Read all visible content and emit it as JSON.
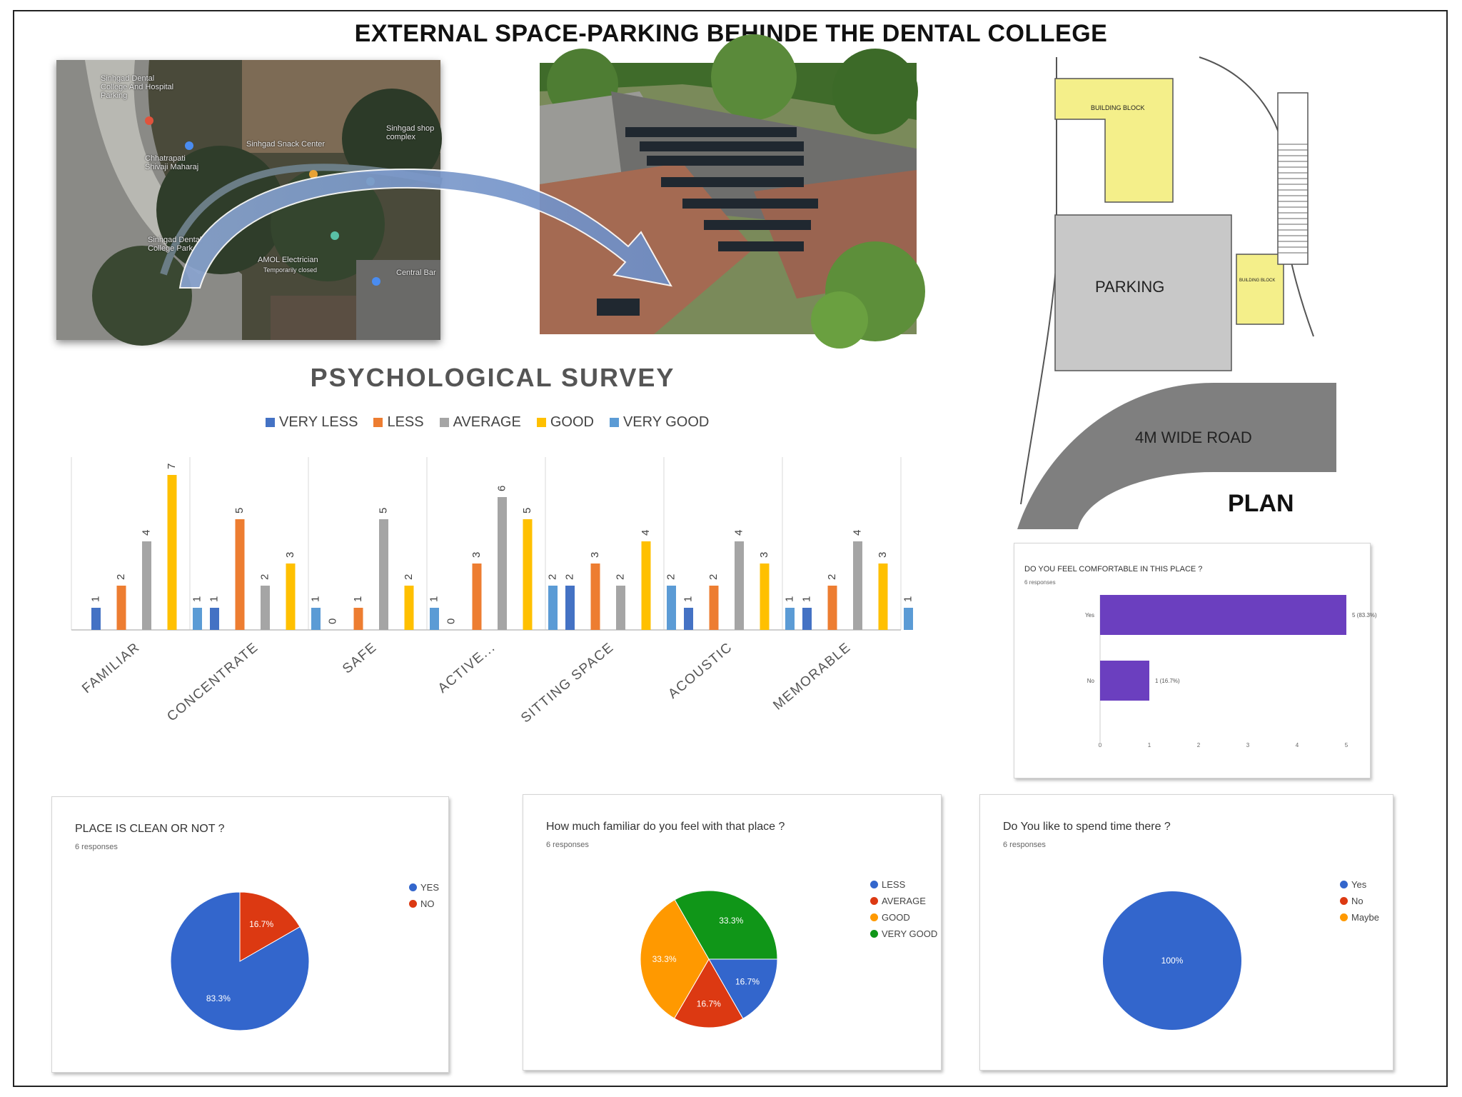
{
  "page": {
    "title": "EXTERNAL SPACE-PARKING BEHINDE THE DENTAL COLLEGE"
  },
  "map": {
    "labels": [
      "Sinhgad Dental College And Hospital Parking",
      "Sinhgad Snack Center",
      "Sinhgad shop complex",
      "Sinhgad Dental College Park",
      "AMOL Electrician",
      "Temporarily closed",
      "Central Bar",
      "Chhatrapati Shivaji Maharaj"
    ]
  },
  "plan": {
    "building_block_label": "BUILDING BLOCK",
    "building_block_small_label": "BUILDING BLOCK",
    "parking_label": "PARKING",
    "road_label": "4M WIDE ROAD",
    "title": "PLAN",
    "colors": {
      "building": "#f4ef8a",
      "parking": "#c8c8c8",
      "road": "#7f7f7f"
    }
  },
  "survey": {
    "title": "PSYCHOLOGICAL SURVEY",
    "legend": [
      {
        "label": "VERY LESS",
        "color": "#4472c4"
      },
      {
        "label": "LESS",
        "color": "#ed7d31"
      },
      {
        "label": "AVERAGE",
        "color": "#a5a5a5"
      },
      {
        "label": "GOOD",
        "color": "#ffc000"
      },
      {
        "label": "VERY GOOD",
        "color": "#5b9bd5"
      }
    ]
  },
  "comfort": {
    "title": "DO YOU FEEL COMFORTABLE IN THIS PLACE ?",
    "responses": "6 responses",
    "color": "#6b3fbf"
  },
  "clean": {
    "title": "PLACE IS CLEAN OR NOT ?",
    "responses": "6 responses",
    "legend": [
      {
        "label": "YES",
        "color": "#3366cc"
      },
      {
        "label": "NO",
        "color": "#dc3912"
      }
    ]
  },
  "familiar": {
    "title": "How much familiar do you feel with that place ?",
    "responses": "6 responses",
    "legend": [
      {
        "label": "LESS",
        "color": "#3366cc"
      },
      {
        "label": "AVERAGE",
        "color": "#dc3912"
      },
      {
        "label": "GOOD",
        "color": "#ff9900"
      },
      {
        "label": "VERY GOOD",
        "color": "#109618"
      }
    ]
  },
  "spend": {
    "title": "Do You like to spend time there ?",
    "responses": "6 responses",
    "legend": [
      {
        "label": "Yes",
        "color": "#3366cc"
      },
      {
        "label": "No",
        "color": "#dc3912"
      },
      {
        "label": "Maybe",
        "color": "#ff9900"
      }
    ]
  },
  "chart_data": [
    {
      "type": "bar",
      "title": "PSYCHOLOGICAL SURVEY",
      "categories": [
        "FAMILIAR",
        "CONCENTRATE",
        "SAFE",
        "ACTIVE...",
        "SITTING SPACE",
        "ACOUSTIC",
        "MEMORABLE"
      ],
      "series": [
        {
          "name": "VERY LESS",
          "values": [
            1,
            1,
            0,
            0,
            2,
            1,
            1
          ]
        },
        {
          "name": "LESS",
          "values": [
            2,
            5,
            1,
            3,
            3,
            2,
            2
          ]
        },
        {
          "name": "AVERAGE",
          "values": [
            4,
            2,
            5,
            6,
            2,
            4,
            4
          ]
        },
        {
          "name": "GOOD",
          "values": [
            7,
            3,
            2,
            5,
            4,
            3,
            3
          ]
        },
        {
          "name": "VERY GOOD",
          "values": [
            1,
            1,
            1,
            2,
            2,
            1,
            1
          ]
        }
      ],
      "ylim": [
        0,
        8
      ],
      "legend": "top",
      "grid": false
    },
    {
      "type": "bar",
      "title": "DO YOU FEEL COMFORTABLE IN THIS PLACE ?",
      "orientation": "horizontal",
      "categories": [
        "Yes",
        "No"
      ],
      "values": [
        5,
        1
      ],
      "data_labels": [
        "5 (83.3%)",
        "1 (16.7%)"
      ],
      "xticks": [
        "0",
        "1",
        "2",
        "3",
        "4",
        "5"
      ],
      "xlim": [
        0,
        5
      ]
    },
    {
      "type": "pie",
      "title": "PLACE IS CLEAN OR NOT ?",
      "labels": [
        "YES",
        "NO"
      ],
      "values": [
        83.3,
        16.7
      ],
      "data_labels": [
        "83.3%",
        "16.7%"
      ]
    },
    {
      "type": "pie",
      "title": "How much familiar do you feel with that place ?",
      "labels": [
        "LESS",
        "AVERAGE",
        "GOOD",
        "VERY GOOD"
      ],
      "values": [
        16.7,
        16.7,
        33.3,
        33.3
      ],
      "data_labels": [
        "16.7%",
        "16.7%",
        "33.3%",
        "33.3%"
      ]
    },
    {
      "type": "pie",
      "title": "Do You like to spend time there ?",
      "labels": [
        "Yes",
        "No",
        "Maybe"
      ],
      "values": [
        100,
        0,
        0
      ],
      "data_labels": [
        "100%"
      ]
    }
  ]
}
